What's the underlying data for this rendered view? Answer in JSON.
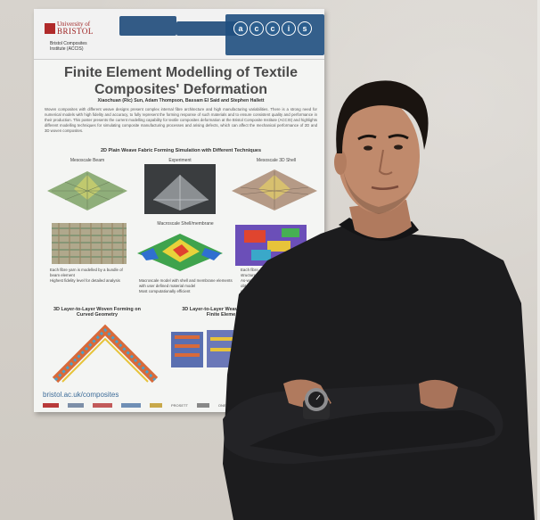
{
  "poster": {
    "university": "University of",
    "university_big": "BRISTOL",
    "institute_line1": "Bristol Composites",
    "institute_line2": "Institute (ACCIS)",
    "accis_letters": [
      "a",
      "c",
      "c",
      "i",
      "s"
    ],
    "title_line1": "Finite Element Modelling of Textile",
    "title_line2": "Composites' Deformation",
    "authors": "Xiaochuan (Ric) Sun, Adam Thompson, Bassam El Said and Stephen Hallett",
    "abstract": "Woven composites with different weave designs present complex internal fibre architecture and high manufacturing variabilities. There is a strong need for numerical models with high fidelity and accuracy, to fully represent the forming response of such materials and to ensure consistent quality and performance in their production. This poster presents the current modelling capability for textile composites deformation at the Bristol Composite Institute (ACCIS) and highlights different modelling techniques for simulating composite manufacturing processes and arising defects, which can affect the mechanical performance of 2D and 3D woven composites.",
    "section1": "2D Plain Weave Fabric Forming Simulation with Different Techniques",
    "label_beam": "Mesoscale Beam",
    "label_experiment": "Experiment",
    "label_shell": "Mesoscale 3D Shell",
    "label_membrane": "Macroscale Shell/membrane",
    "bullets_left": [
      "Each fibre yarn is modelled by a bundle of beam element",
      "Highest fidelity level for detailed analysis"
    ],
    "bullets_mid": [
      "Macroscale model with shell and membrane elements with user defined material model",
      "Most computationally efficient"
    ],
    "bullets_right": [
      "Each fibre",
      "structure",
      "As-woven",
      "obtained",
      "model"
    ],
    "section2": "3D Layer-to-Layer Woven Forming on Curved Geometry",
    "section3": "3D Layer-to-Layer Weav In-House Finite Eleme",
    "url": "bristol.ac.uk/composites",
    "logos": [
      "",
      "",
      "",
      "",
      "",
      "PROSETT",
      "",
      "ONETS"
    ]
  }
}
